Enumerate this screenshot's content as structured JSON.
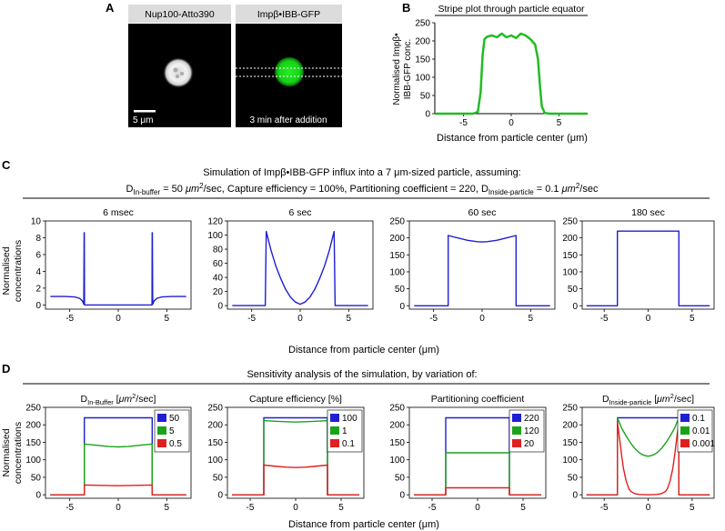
{
  "panel_labels": {
    "A": "A",
    "B": "B",
    "C": "C",
    "D": "D"
  },
  "panelA": {
    "image1_label": "Nup100-Atto390",
    "image2_label": "Impβ•IBB-GFP",
    "scale_bar": "5 μm",
    "time_note": "3 min after addition"
  },
  "panelC": {
    "line1": "Simulation of Impβ•IBB-GFP influx into a 7 μm-sized particle, assuming:",
    "line2_parts": [
      "D",
      "In-buffer",
      " = 50 ",
      "μm",
      "2",
      "/sec, Capture efficiency = 100%, Partitioning coefficient = 220, D",
      "Inside-particle",
      " = 0.1 ",
      "μm",
      "2",
      "/sec"
    ]
  },
  "panelD": {
    "heading": "Sensitivity analysis of the simulation, by variation of:"
  },
  "colors": {
    "blue": "#1f1fd1",
    "green": "#1aa31a",
    "red": "#e02020",
    "stripe": "#22bb22"
  },
  "chart_data": [
    {
      "id": "B",
      "type": "line",
      "title": "Stripe plot through particle equator",
      "xlabel": "Distance from particle center (μm)",
      "ylabel": "Normalised Impβ• IBB-GFP conc.",
      "xlim": [
        -8,
        8
      ],
      "ylim": [
        0,
        250
      ],
      "xticks": [
        -5,
        0,
        5
      ],
      "yticks": [
        0,
        50,
        100,
        150,
        200,
        250
      ],
      "series": [
        {
          "color": "#22bb22",
          "x": [
            -8,
            -4,
            -3.5,
            -3.2,
            -3,
            -2.8,
            -2.5,
            -2,
            -1.5,
            -1,
            -0.5,
            0,
            0.5,
            1,
            1.5,
            2,
            2.5,
            2.8,
            3,
            3.2,
            3.5,
            4,
            8
          ],
          "y": [
            0,
            0,
            5,
            60,
            160,
            205,
            212,
            215,
            210,
            220,
            210,
            215,
            208,
            220,
            215,
            205,
            190,
            150,
            80,
            20,
            2,
            0,
            0
          ]
        }
      ]
    },
    {
      "id": "C1",
      "type": "line",
      "title": "6 msec",
      "ylabel": "Normalised concentrations",
      "xlim": [
        -7.5,
        7.5
      ],
      "ylim": [
        -0.5,
        10
      ],
      "xticks": [
        -5,
        0,
        5
      ],
      "yticks": [
        0,
        2,
        4,
        6,
        8,
        10
      ],
      "series": [
        {
          "color": "#1f1fd1",
          "x": [
            -7,
            -5.5,
            -4.5,
            -4.0,
            -3.7,
            -3.55,
            -3.52,
            -3.5,
            -3.48,
            -3.4,
            -3,
            3,
            3.4,
            3.48,
            3.5,
            3.52,
            3.55,
            3.7,
            4.0,
            4.5,
            5.5,
            7
          ],
          "y": [
            1,
            1,
            0.95,
            0.8,
            0.5,
            0.1,
            8.6,
            8.6,
            0,
            0,
            0,
            0,
            0,
            0,
            8.6,
            8.6,
            0.1,
            0.5,
            0.8,
            0.95,
            1,
            1
          ]
        }
      ]
    },
    {
      "id": "C2",
      "type": "line",
      "title": "6 sec",
      "xlim": [
        -7.5,
        7.5
      ],
      "ylim": [
        -5,
        120
      ],
      "xticks": [
        -5,
        0,
        5
      ],
      "yticks": [
        0,
        20,
        40,
        60,
        80,
        100,
        120
      ],
      "series": [
        {
          "color": "#1f1fd1",
          "x": [
            -7,
            -3.6,
            -3.5,
            -3,
            -2.5,
            -2,
            -1.5,
            -1,
            -0.5,
            0,
            0.5,
            1,
            1.5,
            2,
            2.5,
            3,
            3.5,
            3.6,
            7
          ],
          "y": [
            0,
            0,
            105,
            78,
            56,
            38,
            23,
            12,
            5,
            2,
            5,
            12,
            23,
            38,
            56,
            78,
            105,
            0,
            0
          ]
        }
      ]
    },
    {
      "id": "C3",
      "type": "line",
      "title": "60 sec",
      "xlim": [
        -7.5,
        7.5
      ],
      "ylim": [
        -10,
        250
      ],
      "xticks": [
        -5,
        0,
        5
      ],
      "yticks": [
        0,
        50,
        100,
        150,
        200,
        250
      ],
      "series": [
        {
          "color": "#1f1fd1",
          "x": [
            -7,
            -3.5,
            -3.5,
            -2.5,
            -1.5,
            -0.5,
            0,
            0.5,
            1.5,
            2.5,
            3.5,
            3.5,
            7
          ],
          "y": [
            0,
            0,
            207,
            200,
            193,
            189,
            188,
            189,
            193,
            200,
            207,
            0,
            0
          ]
        }
      ]
    },
    {
      "id": "C4",
      "type": "line",
      "title": "180 sec",
      "xlim": [
        -7.5,
        7.5
      ],
      "ylim": [
        -10,
        250
      ],
      "xticks": [
        -5,
        0,
        5
      ],
      "yticks": [
        0,
        50,
        100,
        150,
        200,
        250
      ],
      "series": [
        {
          "color": "#1f1fd1",
          "x": [
            -7,
            -3.5,
            -3.5,
            3.5,
            3.5,
            7
          ],
          "y": [
            0,
            0,
            220,
            220,
            0,
            0
          ]
        }
      ]
    },
    {
      "id": "D1",
      "type": "line",
      "title_parts": [
        "D",
        "In-Buffer",
        " [",
        "μm",
        "2",
        "/sec]"
      ],
      "ylabel": "Normalised concentrations",
      "xlim": [
        -7.5,
        7.5
      ],
      "ylim": [
        -10,
        250
      ],
      "xticks": [
        -5,
        0,
        5
      ],
      "yticks": [
        0,
        50,
        100,
        150,
        200,
        250
      ],
      "legend_position": "top-right",
      "series": [
        {
          "name": "50",
          "color": "#1f1fd1",
          "x": [
            -7,
            -3.5,
            -3.5,
            3.5,
            3.5,
            7
          ],
          "y": [
            0,
            0,
            220,
            220,
            0,
            0
          ]
        },
        {
          "name": "5",
          "color": "#1aa31a",
          "x": [
            -7,
            -3.5,
            -3.5,
            -2,
            -1,
            0,
            1,
            2,
            3.5,
            3.5,
            7
          ],
          "y": [
            0,
            0,
            145,
            141,
            138,
            137,
            138,
            141,
            145,
            0,
            0
          ]
        },
        {
          "name": "0.5",
          "color": "#e02020",
          "x": [
            -7,
            -3.5,
            -3.5,
            0,
            3.5,
            3.5,
            7
          ],
          "y": [
            0,
            0,
            28,
            26,
            28,
            0,
            0
          ]
        }
      ]
    },
    {
      "id": "D2",
      "type": "line",
      "title": "Capture efficiency [%]",
      "xlim": [
        -7.5,
        7.5
      ],
      "ylim": [
        -10,
        250
      ],
      "xticks": [
        -5,
        0,
        5
      ],
      "yticks": [
        0,
        50,
        100,
        150,
        200,
        250
      ],
      "legend_position": "top-right",
      "series": [
        {
          "name": "100",
          "color": "#1f1fd1",
          "x": [
            -7,
            -3.5,
            -3.5,
            3.5,
            3.5,
            7
          ],
          "y": [
            0,
            0,
            220,
            220,
            0,
            0
          ]
        },
        {
          "name": "1",
          "color": "#1aa31a",
          "x": [
            -7,
            -3.5,
            -3.5,
            -2,
            0,
            2,
            3.5,
            3.5,
            7
          ],
          "y": [
            0,
            0,
            212,
            210,
            208,
            210,
            212,
            0,
            0
          ]
        },
        {
          "name": "0.1",
          "color": "#e02020",
          "x": [
            -7,
            -3.5,
            -3.5,
            -2,
            -1,
            0,
            1,
            2,
            3.5,
            3.5,
            7
          ],
          "y": [
            0,
            0,
            85,
            81,
            79,
            78,
            79,
            81,
            85,
            0,
            0
          ]
        }
      ]
    },
    {
      "id": "D3",
      "type": "line",
      "title": "Partitioning coefficient",
      "xlim": [
        -7.5,
        7.5
      ],
      "ylim": [
        -10,
        250
      ],
      "xticks": [
        -5,
        0,
        5
      ],
      "yticks": [
        0,
        50,
        100,
        150,
        200,
        250
      ],
      "legend_position": "top-right",
      "series": [
        {
          "name": "220",
          "color": "#1f1fd1",
          "x": [
            -7,
            -3.5,
            -3.5,
            3.5,
            3.5,
            7
          ],
          "y": [
            0,
            0,
            220,
            220,
            0,
            0
          ]
        },
        {
          "name": "120",
          "color": "#1aa31a",
          "x": [
            -7,
            -3.5,
            -3.5,
            3.5,
            3.5,
            7
          ],
          "y": [
            0,
            0,
            120,
            120,
            0,
            0
          ]
        },
        {
          "name": "20",
          "color": "#e02020",
          "x": [
            -7,
            -3.5,
            -3.5,
            3.5,
            3.5,
            7
          ],
          "y": [
            0,
            0,
            20,
            20,
            0,
            0
          ]
        }
      ]
    },
    {
      "id": "D4",
      "type": "line",
      "title_parts": [
        "D",
        "Inside-particle",
        " [",
        "μm",
        "2",
        "/sec]"
      ],
      "xlim": [
        -7.5,
        7.5
      ],
      "ylim": [
        -10,
        250
      ],
      "xticks": [
        -5,
        0,
        5
      ],
      "yticks": [
        0,
        50,
        100,
        150,
        200,
        250
      ],
      "legend_position": "top-right",
      "series": [
        {
          "name": "0.1",
          "color": "#1f1fd1",
          "x": [
            -7,
            -3.5,
            -3.5,
            3.5,
            3.5,
            7
          ],
          "y": [
            0,
            0,
            220,
            220,
            0,
            0
          ]
        },
        {
          "name": "0.01",
          "color": "#1aa31a",
          "x": [
            -7,
            -3.5,
            -3.5,
            -3,
            -2.5,
            -2,
            -1.5,
            -1,
            -0.5,
            0,
            0.5,
            1,
            1.5,
            2,
            2.5,
            3,
            3.5,
            3.5,
            7
          ],
          "y": [
            0,
            0,
            220,
            190,
            168,
            148,
            132,
            120,
            113,
            110,
            113,
            120,
            132,
            148,
            168,
            190,
            220,
            0,
            0
          ]
        },
        {
          "name": "0.001",
          "color": "#e02020",
          "x": [
            -7,
            -3.5,
            -3.5,
            -3.2,
            -3,
            -2.8,
            -2.5,
            -2.2,
            -2,
            -1.5,
            -1,
            0,
            1,
            1.5,
            2,
            2.2,
            2.5,
            2.8,
            3,
            3.2,
            3.5,
            3.5,
            7
          ],
          "y": [
            0,
            0,
            210,
            150,
            110,
            75,
            40,
            18,
            10,
            3,
            1,
            0,
            1,
            3,
            10,
            18,
            40,
            75,
            110,
            150,
            210,
            0,
            0
          ]
        }
      ]
    }
  ],
  "axis": {
    "shared_x_label": "Distance from particle center (μm)"
  }
}
